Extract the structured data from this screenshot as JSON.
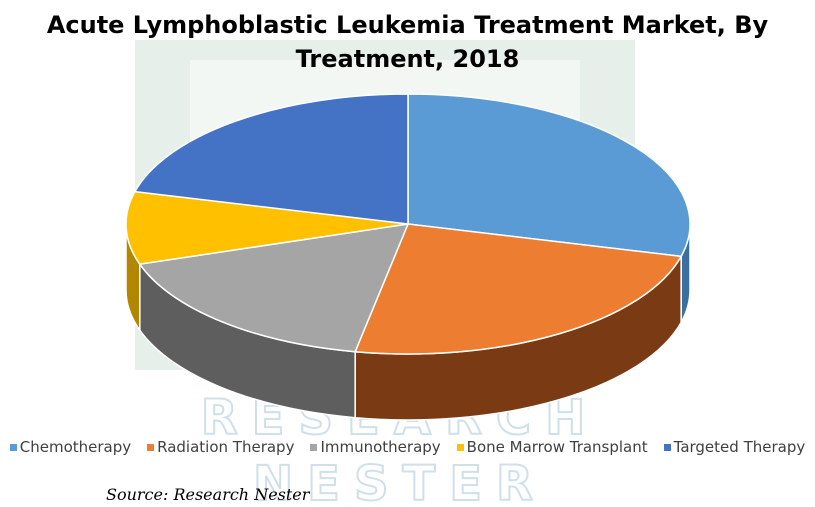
{
  "title_lines": [
    "Acute Lymphoblastic Leukemia Treatment Market, By",
    "Treatment, 2018"
  ],
  "source": "Source: Research Nester",
  "watermark": {
    "lines": [
      "RESEARCH",
      "NESTER"
    ],
    "color": "#8fb3c4"
  },
  "chart_data": {
    "type": "pie",
    "title": "Acute Lymphoblastic Leukemia Treatment Market, By Treatment, 2018",
    "style": "3d",
    "legend_position": "bottom",
    "series": [
      {
        "name": "Chemotherapy",
        "value": 29,
        "color": "#5b9bd5",
        "side_color": "#3b6fa0"
      },
      {
        "name": "Radiation Therapy",
        "value": 24,
        "color": "#ed7d31",
        "side_color": "#7a3a13"
      },
      {
        "name": "Immunotherapy",
        "value": 17,
        "color": "#a5a5a5",
        "side_color": "#5e5e5e"
      },
      {
        "name": "Bone Marrow Transplant",
        "value": 9,
        "color": "#ffc000",
        "side_color": "#b38600"
      },
      {
        "name": "Targeted Therapy",
        "value": 21,
        "color": "#4472c4",
        "side_color": "#2c4c87"
      }
    ]
  }
}
